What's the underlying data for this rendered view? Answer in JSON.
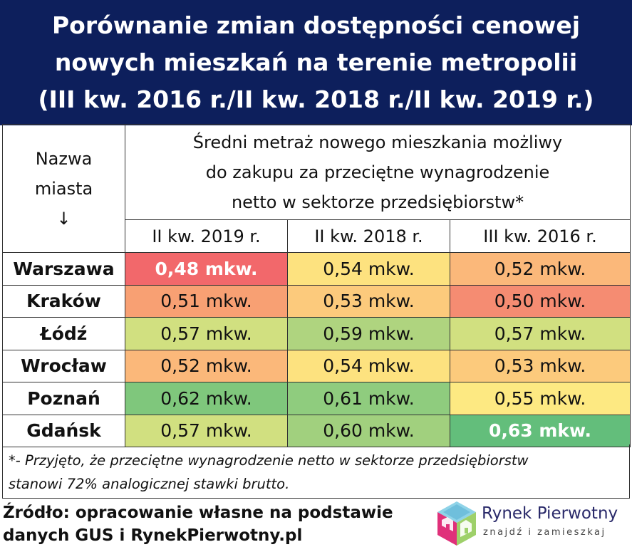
{
  "title": {
    "line1": "Porównanie zmian dostępności cenowej",
    "line2": "nowych mieszkań na terenie metropolii",
    "line3": "(III kw. 2016 r./II kw. 2018 r./II kw. 2019 r.)"
  },
  "table": {
    "city_header": {
      "line1": "Nazwa",
      "line2": "miasta",
      "arrow": "↓"
    },
    "metric_header": {
      "line1": "Średni metraż nowego mieszkania możliwy",
      "line2": "do zakupu za przeciętne wynagrodzenie",
      "line3": "netto w sektorze przedsiębiorstw*"
    },
    "columns": [
      "II kw. 2019 r.",
      "II kw. 2018 r.",
      "III kw. 2016 r."
    ],
    "rows": [
      {
        "city": "Warszawa",
        "values": [
          "0,48 mkw.",
          "0,54 mkw.",
          "0,52 mkw."
        ],
        "colors": [
          "#f2686b",
          "#fde27f",
          "#fbb87a"
        ],
        "highlight": [
          true,
          false,
          false
        ]
      },
      {
        "city": "Kraków",
        "values": [
          "0,51 mkw.",
          "0,53 mkw.",
          "0,50 mkw."
        ],
        "colors": [
          "#f8a073",
          "#fcca7c",
          "#f58c72"
        ],
        "highlight": [
          false,
          false,
          false
        ]
      },
      {
        "city": "Łódź",
        "values": [
          "0,57 mkw.",
          "0,59 mkw.",
          "0,57 mkw."
        ],
        "colors": [
          "#d1e080",
          "#afd47f",
          "#d1e080"
        ],
        "highlight": [
          false,
          false,
          false
        ]
      },
      {
        "city": "Wrocław",
        "values": [
          "0,52 mkw.",
          "0,54 mkw.",
          "0,53 mkw."
        ],
        "colors": [
          "#fbb87a",
          "#fde27f",
          "#fcca7c"
        ],
        "highlight": [
          false,
          false,
          false
        ]
      },
      {
        "city": "Poznań",
        "values": [
          "0,62 mkw.",
          "0,61 mkw.",
          "0,55 mkw."
        ],
        "colors": [
          "#7fc77c",
          "#8fcc7e",
          "#fde982"
        ],
        "highlight": [
          false,
          false,
          false
        ]
      },
      {
        "city": "Gdańsk",
        "values": [
          "0,57 mkw.",
          "0,60 mkw.",
          "0,63 mkw."
        ],
        "colors": [
          "#d1e080",
          "#a1d07e",
          "#63be7b"
        ],
        "highlight": [
          false,
          false,
          true
        ]
      }
    ]
  },
  "note": {
    "line1": "*- Przyjęto, że przeciętne wynagrodzenie netto w sektorze przedsiębiorstw",
    "line2": "stanowi 72% analogicznej stawki brutto."
  },
  "source": {
    "line1": "Źródło: opracowanie własne na podstawie",
    "line2": "danych GUS i RynekPierwotny.pl"
  },
  "logo": {
    "name": "Rynek Pierwotny",
    "tagline": "znajdź i zamieszkaj",
    "icon": "house-cube-icon"
  }
}
